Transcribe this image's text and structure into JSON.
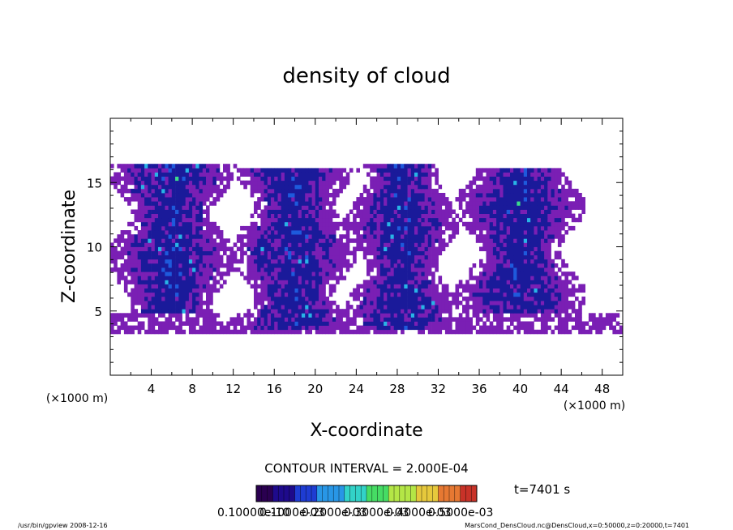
{
  "chart_data": {
    "type": "heatmap",
    "title": "density of cloud",
    "xlabel": "X-coordinate",
    "ylabel": "Z-coordinate",
    "x_unit": "(×1000 m)",
    "y_unit": "(×1000 m)",
    "xlim": [
      0,
      50
    ],
    "ylim": [
      0,
      20
    ],
    "xticks": [
      4,
      8,
      12,
      16,
      20,
      24,
      28,
      32,
      36,
      40,
      44,
      48
    ],
    "yticks": [
      5,
      10,
      15
    ],
    "contour_interval": "CONTOUR INTERVAL = 2.000E-04",
    "time_label": "t=7401 s",
    "colorbar_labels": [
      "0.10000e-10",
      "0.1000e-03",
      "0.2000e-03",
      "0.3000e-03",
      "0.4000e-03",
      "0.5000e-03"
    ],
    "colorbar_colors": [
      "#3a0a6a",
      "#1a1a9a",
      "#1e5adc",
      "#28b4e6",
      "#3cdc8c",
      "#a0e650",
      "#e6dc46",
      "#e68c3c",
      "#d23c28"
    ],
    "cloud_base_band": {
      "z_min": 3.2,
      "z_max": 4.8
    },
    "cloud_cells": [
      {
        "x_center": 6.0,
        "x_halfwidth": 4.0,
        "z_bottom": 5.0,
        "z_top": 16.5,
        "peak": "~0.4e-03"
      },
      {
        "x_center": 18.0,
        "x_halfwidth": 4.0,
        "z_bottom": 3.5,
        "z_top": 16.0,
        "peak": "~0.4e-03"
      },
      {
        "x_center": 28.5,
        "x_halfwidth": 3.5,
        "z_bottom": 3.5,
        "z_top": 16.5,
        "peak": "~0.5e-03"
      },
      {
        "x_center": 40.0,
        "x_halfwidth": 4.0,
        "z_bottom": 5.0,
        "z_top": 16.0,
        "peak": "~0.3e-03"
      }
    ]
  },
  "footer": {
    "left": "/usr/bin/gpview  2008-12-16",
    "right": "MarsCond_DensCloud.nc@DensCloud,x=0:50000,z=0:20000,t=7401"
  }
}
